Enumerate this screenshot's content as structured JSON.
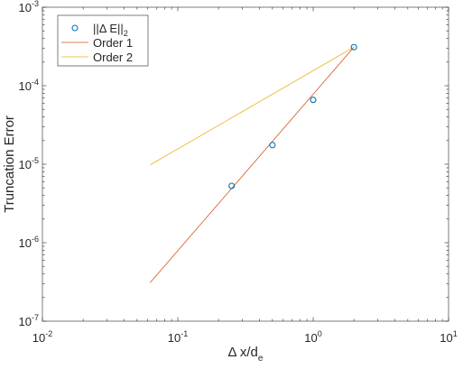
{
  "chart_data": {
    "type": "line",
    "title": "",
    "xlabel": {
      "base": "Δ x/d",
      "subscript": "e"
    },
    "ylabel": "Truncation Error",
    "xscale": "log",
    "yscale": "log",
    "xlim": [
      0.01,
      10
    ],
    "ylim": [
      1e-07,
      0.001
    ],
    "grid": false,
    "box": true,
    "x_ticks": [
      {
        "value": 0.01,
        "base": "10",
        "exp": "-2"
      },
      {
        "value": 0.1,
        "base": "10",
        "exp": "-1"
      },
      {
        "value": 1,
        "base": "10",
        "exp": "0"
      },
      {
        "value": 10,
        "base": "10",
        "exp": "1"
      }
    ],
    "y_ticks": [
      {
        "value": 1e-07,
        "base": "10",
        "exp": "-7"
      },
      {
        "value": 1e-06,
        "base": "10",
        "exp": "-6"
      },
      {
        "value": 1e-05,
        "base": "10",
        "exp": "-5"
      },
      {
        "value": 0.0001,
        "base": "10",
        "exp": "-4"
      },
      {
        "value": 0.001,
        "base": "10",
        "exp": "-3"
      }
    ],
    "legend": {
      "position": "top-left",
      "entries": [
        {
          "series": 0,
          "main": "||Δ E||",
          "sub": "2"
        },
        {
          "series": 1,
          "main": "Order 1",
          "sub": ""
        },
        {
          "series": 2,
          "main": "Order 2",
          "sub": ""
        }
      ]
    },
    "series": [
      {
        "kind": "markers",
        "marker": "circle",
        "color": "#0072BD",
        "x": [
          0.25,
          0.5,
          1.0,
          2.0
        ],
        "y": [
          5.3e-06,
          1.75e-05,
          6.6e-05,
          0.00031
        ]
      },
      {
        "kind": "line",
        "color": "#D95319",
        "x": [
          0.0625,
          2.0
        ],
        "y": [
          3.1e-07,
          0.00031
        ]
      },
      {
        "kind": "line",
        "color": "#EDB120",
        "x": [
          0.0625,
          2.0
        ],
        "y": [
          9.8e-06,
          0.00031
        ]
      }
    ]
  }
}
